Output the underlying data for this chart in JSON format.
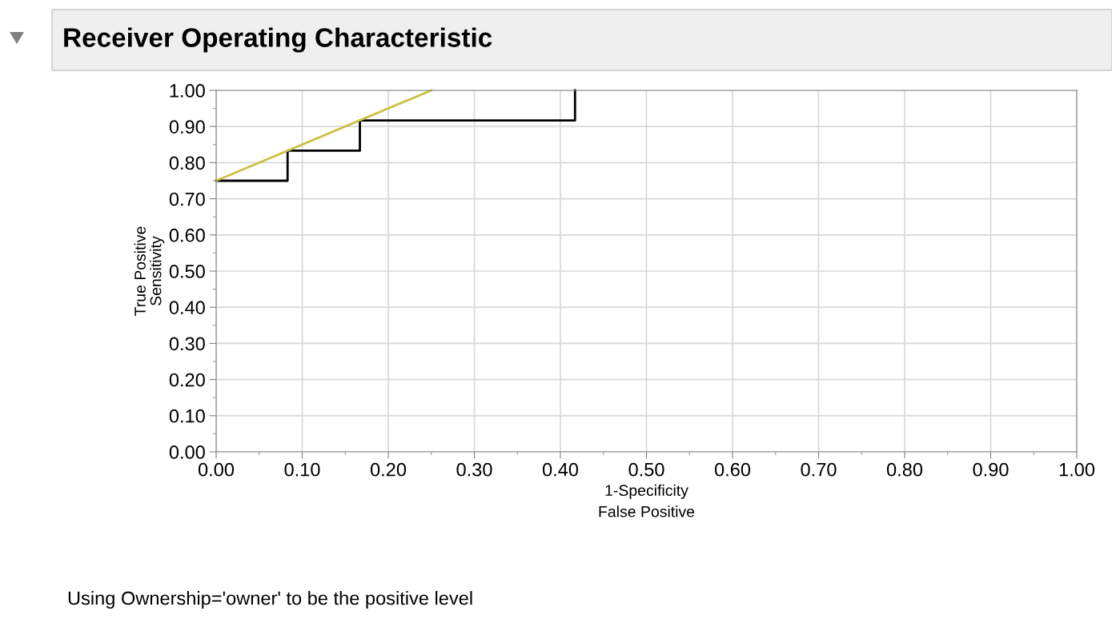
{
  "chart_data": {
    "type": "line",
    "title": "Receiver Operating Characteristic",
    "xlabel": "1-Specificity\nFalse Positive",
    "ylabel": "True Positive\nSensitivity",
    "series": [
      {
        "color": "#000000",
        "x": [
          0,
          0.083,
          0.083,
          0.167,
          0.167,
          0.417,
          0.417
        ],
        "values": [
          0.75,
          0.75,
          0.833,
          0.833,
          0.917,
          0.917,
          1.0
        ]
      },
      {
        "color": "#c8c040",
        "x": [
          0,
          0.25
        ],
        "values": [
          0.75,
          1.0
        ]
      }
    ],
    "xlim": [
      0,
      1
    ],
    "ylim": [
      0,
      1
    ],
    "xticks": [
      {
        "value": 0,
        "label": "0.00"
      },
      {
        "value": 0.1,
        "label": "0.10"
      },
      {
        "value": 0.2,
        "label": "0.20"
      },
      {
        "value": 0.3,
        "label": "0.30"
      },
      {
        "value": 0.4,
        "label": "0.40"
      },
      {
        "value": 0.5,
        "label": "0.50"
      },
      {
        "value": 0.6,
        "label": "0.60"
      },
      {
        "value": 0.7,
        "label": "0.70"
      },
      {
        "value": 0.8,
        "label": "0.80"
      },
      {
        "value": 0.9,
        "label": "0.90"
      },
      {
        "value": 1,
        "label": "1.00"
      }
    ],
    "yticks": [
      {
        "value": 0,
        "label": "0.00"
      },
      {
        "value": 0.1,
        "label": "0.10"
      },
      {
        "value": 0.2,
        "label": "0.20"
      },
      {
        "value": 0.3,
        "label": "0.30"
      },
      {
        "value": 0.4,
        "label": "0.40"
      },
      {
        "value": 0.5,
        "label": "0.50"
      },
      {
        "value": 0.6,
        "label": "0.60"
      },
      {
        "value": 0.7,
        "label": "0.70"
      },
      {
        "value": 0.8,
        "label": "0.80"
      },
      {
        "value": 0.9,
        "label": "0.90"
      },
      {
        "value": 1,
        "label": "1.00"
      }
    ],
    "grid": true,
    "legend": false,
    "line_style": "solid",
    "marker": "none",
    "annotations": [
      "Using Ownership='owner' to be the positive level"
    ]
  }
}
